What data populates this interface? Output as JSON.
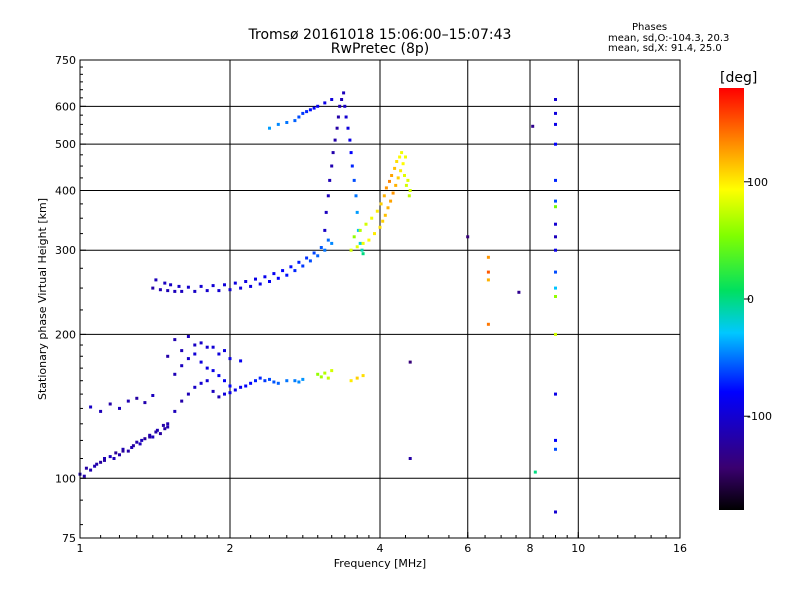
{
  "header": {
    "title_line1": "Tromsø 20161018 15:06:00–15:07:43",
    "title_line2": "RwPretec (8p)",
    "stats_title": "Phases",
    "stats_o": "mean, sd,O:-104.3, 20.3",
    "stats_x": "mean, sd,X:  91.4, 25.0"
  },
  "colorbar": {
    "unit_label": "[deg]",
    "ticks": [
      "100",
      "0",
      "-100"
    ],
    "tick_values": [
      100,
      0,
      -100
    ],
    "range": [
      -180,
      180
    ]
  },
  "chart_data": {
    "type": "scatter",
    "xlabel": "Frequency [MHz]",
    "ylabel": "Stationary phase Virtual Height [km]",
    "xscale": "log2",
    "yscale": "log",
    "xlim": [
      1,
      16
    ],
    "ylim": [
      75,
      750
    ],
    "x_ticks": [
      "1",
      "2",
      "4",
      "6",
      "8",
      "10",
      "16"
    ],
    "x_tick_values": [
      1,
      2,
      4,
      6,
      8,
      10,
      16
    ],
    "x_grid_values": [
      2,
      4,
      6,
      8,
      10
    ],
    "y_ticks": [
      "750",
      "600",
      "500",
      "400",
      "300",
      "200",
      "100",
      "75"
    ],
    "y_tick_values": [
      750,
      600,
      500,
      400,
      300,
      200,
      100,
      75
    ],
    "y_grid_values": [
      600,
      500,
      400,
      300,
      200,
      100
    ],
    "grid": true,
    "series": [
      {
        "x": [
          1.0,
          1.03,
          1.05,
          1.08,
          1.1,
          1.12,
          1.15,
          1.18,
          1.2,
          1.22,
          1.25,
          1.28,
          1.3,
          1.32,
          1.35,
          1.38,
          1.4,
          1.42,
          1.45,
          1.48,
          1.5,
          1.05,
          1.1,
          1.15,
          1.2,
          1.25,
          1.3,
          1.35,
          1.4,
          1.02,
          1.07,
          1.12,
          1.17,
          1.22,
          1.27,
          1.33,
          1.38,
          1.43,
          1.47
        ],
        "y": [
          102,
          105,
          104,
          107,
          108,
          110,
          111,
          113,
          112,
          115,
          114,
          117,
          119,
          118,
          121,
          123,
          122,
          125,
          124,
          127,
          128,
          141,
          138,
          143,
          140,
          145,
          147,
          144,
          149,
          101,
          106,
          109,
          110,
          114,
          116,
          120,
          122,
          126,
          129
        ],
        "phase": [
          -110,
          -120,
          -115,
          -118,
          -122,
          -112,
          -108,
          -125,
          -117,
          -113,
          -119,
          -121,
          -116,
          -111,
          -124,
          -114,
          -109,
          -118,
          -122,
          -120,
          -115,
          -105,
          -112,
          -118,
          -110,
          -114,
          -121,
          -116,
          -108,
          -117,
          -113,
          -119,
          -111,
          -123,
          -115,
          -109,
          -120,
          -114,
          -118
        ]
      },
      {
        "x": [
          1.5,
          1.55,
          1.6,
          1.65,
          1.7,
          1.75,
          1.8,
          1.85,
          1.9,
          1.95,
          2.0,
          2.05,
          2.1,
          2.15,
          2.2,
          2.25,
          2.3,
          2.35,
          2.4,
          2.45,
          2.5,
          2.6,
          2.7,
          2.75,
          2.8,
          1.55,
          1.6,
          1.65,
          1.7,
          1.75,
          1.8,
          1.85,
          1.9,
          1.95,
          2.0,
          1.5,
          1.6,
          1.7,
          1.8,
          1.9,
          2.0,
          2.1,
          1.55,
          1.65,
          1.75,
          1.85,
          1.95
        ],
        "y": [
          130,
          138,
          145,
          150,
          155,
          158,
          160,
          152,
          148,
          150,
          151,
          153,
          155,
          156,
          158,
          160,
          162,
          160,
          161,
          159,
          158,
          160,
          160,
          159,
          161,
          165,
          172,
          178,
          182,
          175,
          170,
          168,
          164,
          160,
          156,
          180,
          185,
          190,
          188,
          182,
          178,
          176,
          195,
          198,
          192,
          188,
          185
        ],
        "phase": [
          -115,
          -110,
          -118,
          -112,
          -105,
          -100,
          -98,
          -108,
          -112,
          -95,
          -90,
          -88,
          -85,
          -80,
          -78,
          -72,
          -70,
          -65,
          -60,
          -58,
          -55,
          -50,
          -48,
          -45,
          -42,
          -112,
          -108,
          -103,
          -98,
          -95,
          -92,
          -90,
          -85,
          -82,
          -80,
          -118,
          -112,
          -106,
          -100,
          -95,
          -90,
          -86,
          -115,
          -110,
          -104,
          -98,
          -93
        ]
      },
      {
        "x": [
          1.4,
          1.45,
          1.5,
          1.55,
          1.6,
          1.7,
          1.8,
          1.9,
          2.0,
          2.1,
          2.2,
          2.3,
          2.4,
          2.5,
          2.6,
          2.7,
          2.8,
          2.9,
          3.0,
          3.1,
          3.2,
          1.42,
          1.48,
          1.52,
          1.58,
          1.65,
          1.75,
          1.85,
          1.95,
          2.05,
          2.15,
          2.25,
          2.35,
          2.45,
          2.55,
          2.65,
          2.75,
          2.85,
          2.95,
          3.05,
          3.15
        ],
        "y": [
          250,
          248,
          247,
          246,
          246,
          246,
          247,
          247,
          248,
          250,
          252,
          255,
          258,
          262,
          266,
          272,
          278,
          285,
          292,
          300,
          310,
          260,
          256,
          254,
          252,
          251,
          252,
          253,
          254,
          256,
          258,
          261,
          264,
          268,
          272,
          277,
          283,
          289,
          296,
          304,
          315
        ],
        "phase": [
          -118,
          -115,
          -112,
          -110,
          -108,
          -105,
          -102,
          -100,
          -98,
          -95,
          -92,
          -88,
          -85,
          -80,
          -75,
          -70,
          -65,
          -60,
          -55,
          -50,
          -45,
          -110,
          -108,
          -106,
          -104,
          -102,
          -100,
          -98,
          -96,
          -94,
          -92,
          -90,
          -87,
          -84,
          -80,
          -76,
          -72,
          -67,
          -62,
          -57,
          -52
        ]
      },
      {
        "x": [
          3.1,
          3.12,
          3.15,
          3.17,
          3.2,
          3.22,
          3.25,
          3.28,
          3.3,
          3.32,
          3.35,
          3.38,
          3.4,
          3.42,
          3.45,
          3.48,
          3.5,
          3.52,
          3.55,
          3.58,
          3.6,
          3.62,
          3.65,
          3.68,
          3.7
        ],
        "y": [
          330,
          360,
          390,
          420,
          450,
          480,
          510,
          540,
          570,
          600,
          620,
          640,
          600,
          570,
          540,
          510,
          480,
          450,
          420,
          390,
          360,
          330,
          310,
          300,
          295
        ],
        "phase": [
          -105,
          -108,
          -110,
          -112,
          -115,
          -117,
          -118,
          -120,
          -118,
          -115,
          -112,
          -110,
          -105,
          -100,
          -95,
          -90,
          -80,
          -70,
          -60,
          -50,
          -40,
          -30,
          -20,
          -10,
          0
        ]
      },
      {
        "x": [
          3.5,
          3.6,
          3.7,
          3.8,
          3.9,
          4.0,
          4.05,
          4.1,
          4.15,
          4.2,
          4.25,
          4.3,
          4.35,
          4.4,
          4.45,
          4.5,
          4.55,
          4.6,
          3.55,
          3.65,
          3.75,
          3.85,
          3.95,
          4.02,
          4.08,
          4.12,
          4.18,
          4.22,
          4.28,
          4.32,
          4.38,
          4.42,
          4.48,
          4.52,
          4.58
        ],
        "y": [
          300,
          305,
          310,
          315,
          325,
          335,
          345,
          355,
          368,
          380,
          395,
          410,
          425,
          440,
          455,
          470,
          420,
          400,
          320,
          330,
          340,
          350,
          362,
          375,
          390,
          405,
          418,
          430,
          445,
          460,
          470,
          480,
          430,
          410,
          390
        ],
        "phase": [
          80,
          85,
          90,
          95,
          100,
          105,
          110,
          115,
          120,
          125,
          130,
          120,
          110,
          100,
          95,
          90,
          85,
          80,
          60,
          70,
          80,
          90,
          100,
          110,
          120,
          130,
          135,
          125,
          115,
          105,
          95,
          90,
          85,
          80,
          75
        ]
      },
      {
        "x": [
          3.0,
          3.05,
          3.1,
          3.15,
          3.2,
          3.5,
          3.6,
          3.7
        ],
        "y": [
          165,
          163,
          166,
          162,
          168,
          160,
          162,
          164
        ],
        "phase": [
          60,
          65,
          70,
          75,
          80,
          100,
          110,
          105
        ]
      },
      {
        "x": [
          2.4,
          2.5,
          2.6,
          2.7,
          2.75,
          2.8,
          2.85,
          2.9,
          2.95,
          3.0,
          3.1,
          3.2
        ],
        "y": [
          540,
          550,
          555,
          560,
          570,
          580,
          585,
          590,
          595,
          600,
          610,
          620
        ],
        "phase": [
          -40,
          -45,
          -50,
          -55,
          -60,
          -65,
          -70,
          -75,
          -80,
          -85,
          -90,
          -95
        ]
      },
      {
        "x": [
          9.0,
          9.0,
          9.0,
          9.0,
          9.0,
          9.0,
          9.0,
          9.0,
          9.0,
          9.0,
          9.0,
          9.0,
          9.0,
          9.0,
          9.0,
          9.0,
          9.0,
          9.0,
          6.6,
          6.6,
          6.6,
          6.6,
          8.1,
          7.6,
          8.2,
          6.0,
          4.6,
          4.6
        ],
        "y": [
          620,
          580,
          550,
          500,
          420,
          380,
          370,
          340,
          320,
          300,
          270,
          250,
          240,
          200,
          150,
          120,
          115,
          85,
          290,
          270,
          260,
          210,
          545,
          245,
          103,
          320,
          175,
          110
        ],
        "phase": [
          -100,
          -95,
          -90,
          -80,
          -70,
          -60,
          50,
          -100,
          -110,
          -90,
          -60,
          -30,
          60,
          80,
          -90,
          -80,
          -60,
          -100,
          130,
          150,
          120,
          140,
          -130,
          -130,
          0,
          -140,
          -140,
          -120
        ]
      }
    ]
  }
}
